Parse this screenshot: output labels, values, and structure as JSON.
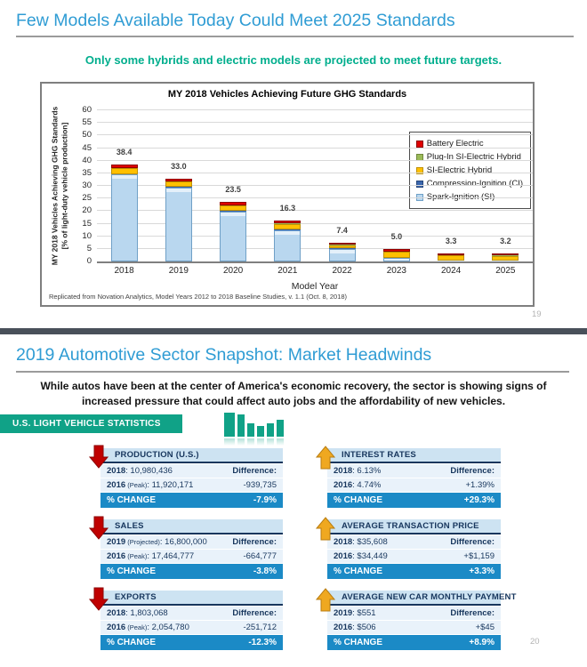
{
  "slide1": {
    "title": "Few Models Available Today Could Meet 2025 Standards",
    "subtitle": "Only some hybrids and electric models are projected to meet future targets.",
    "page_number": "19"
  },
  "chart_data": {
    "type": "bar",
    "stacked": true,
    "title": "MY 2018 Vehicles Achieving Future GHG Standards",
    "categories": [
      "2018",
      "2019",
      "2020",
      "2021",
      "2022",
      "2023",
      "2024",
      "2025"
    ],
    "totals": [
      38.4,
      33.0,
      23.5,
      16.3,
      7.4,
      5.0,
      3.3,
      3.2
    ],
    "totals_labels": [
      "38.4",
      "33.0",
      "23.5",
      "16.3",
      "7.4",
      "5.0",
      "3.3",
      "3.2"
    ],
    "series": [
      {
        "name": "Spark-Ignition (SI)",
        "color": "#b9d7ef",
        "border": "#6fa0c7",
        "values": [
          34.6,
          29.4,
          19.9,
          12.5,
          5.1,
          1.3,
          0.3,
          0.2
        ]
      },
      {
        "name": "Compression-Ignition (CI)",
        "color": "#3a66ad",
        "border": "#27477a",
        "values": [
          0.15,
          0.15,
          0.15,
          0.15,
          0.1,
          0.1,
          0.1,
          0.1
        ]
      },
      {
        "name": "SI-Electric Hybrid",
        "color": "#ffc000",
        "border": "#bf9000",
        "values": [
          2.2,
          2.1,
          2.1,
          2.3,
          1.3,
          2.4,
          2.0,
          2.0
        ]
      },
      {
        "name": "Plug-In SI-Electric Hybrid",
        "color": "#9bbb59",
        "border": "#71893f",
        "values": [
          0.15,
          0.15,
          0.15,
          0.15,
          0.1,
          0.1,
          0.1,
          0.1
        ]
      },
      {
        "name": "Battery Electric",
        "color": "#e00000",
        "border": "#8f0000",
        "values": [
          1.3,
          1.2,
          1.2,
          1.2,
          0.8,
          1.1,
          0.8,
          0.8
        ]
      }
    ],
    "legend_top_to_bottom": [
      "Battery Electric",
      "Plug-In SI-Electric Hybrid",
      "SI-Electric Hybrid",
      "Compression-Ignition (CI)",
      "Spark-Ignition (SI)"
    ],
    "legend_position": "upper right",
    "xlabel": "Model Year",
    "ylabel_line1": "MY 2018 Vehicles Achieving GHG Standards",
    "ylabel_line2": "[% of light-duty vehicle production]",
    "ylim": [
      0,
      60
    ],
    "ytick_step": 5,
    "grid": true,
    "source_note": "Replicated from Novation Analytics, Model Years 2012 to 2018 Baseline Studies, v. 1.1 (Oct. 8, 2018)"
  },
  "slide2": {
    "title": "2019 Automotive Sector Snapshot: Market Headwinds",
    "body_line1": "While autos have been at the center of America's economic recovery, the sector is showing signs of",
    "body_line2": "increased pressure that could affect auto jobs and the affordability of new vehicles.",
    "banner_label": "U.S. LIGHT VEHICLE STATISTICS",
    "change_label": "% CHANGE",
    "page_number": "20",
    "columns": [
      {
        "panels": [
          {
            "title": "PRODUCTION (U.S.)",
            "trend": "down",
            "rows": [
              {
                "year": "2018",
                "note": "",
                "value": "10,980,436",
                "diff": "Difference:"
              },
              {
                "year": "2016",
                "note": "(Peak):",
                "value": "11,920,171",
                "diff": "-939,735"
              }
            ],
            "change": "-7.9%"
          },
          {
            "title": "SALES",
            "trend": "down",
            "rows": [
              {
                "year": "2019",
                "note": "(Projected):",
                "value": "16,800,000",
                "diff": "Difference:"
              },
              {
                "year": "2016",
                "note": "(Peak):",
                "value": "17,464,777",
                "diff": "-664,777"
              }
            ],
            "change": "-3.8%"
          },
          {
            "title": "EXPORTS",
            "trend": "down",
            "rows": [
              {
                "year": "2018",
                "note": "",
                "value": "1,803,068",
                "diff": "Difference:"
              },
              {
                "year": "2016",
                "note": "(Peak):",
                "value": "2,054,780",
                "diff": "-251,712"
              }
            ],
            "change": "-12.3%"
          }
        ]
      },
      {
        "panels": [
          {
            "title": "INTEREST RATES",
            "trend": "up",
            "rows": [
              {
                "year": "2018",
                "note": "",
                "value": "6.13%",
                "diff": "Difference:"
              },
              {
                "year": "2016",
                "note": "",
                "value": "4.74%",
                "diff": "+1.39%"
              }
            ],
            "change": "+29.3%"
          },
          {
            "title": "AVERAGE TRANSACTION PRICE",
            "trend": "up",
            "rows": [
              {
                "year": "2018",
                "note": "",
                "value": "$35,608",
                "diff": "Difference:"
              },
              {
                "year": "2016",
                "note": "",
                "value": "$34,449",
                "diff": "+$1,159"
              }
            ],
            "change": "+3.3%"
          },
          {
            "title": "AVERAGE NEW CAR MONTHLY PAYMENT",
            "trend": "up",
            "rows": [
              {
                "year": "2019",
                "note": "",
                "value": "$551",
                "diff": "Difference:"
              },
              {
                "year": "2016",
                "note": "",
                "value": "$506",
                "diff": "+$45"
              }
            ],
            "change": "+8.9%"
          }
        ]
      }
    ]
  },
  "colors": {
    "title_blue": "#2f9cd4",
    "subtitle_teal": "#00ae8d",
    "separator_dark": "#49505a",
    "banner_green": "#10a287",
    "navy": "#17365d",
    "change_bar_blue": "#1b8ac6",
    "panel_header_bg": "#cde3f2",
    "panel_row_bg": "#e9f2fa",
    "down_arrow_red": "#c00000",
    "up_arrow_gold": "#efa820"
  },
  "icons": {
    "banner_icon": "bar-chart-icon",
    "negative_trend": "down-arrow-icon",
    "positive_trend": "up-arrow-icon"
  }
}
